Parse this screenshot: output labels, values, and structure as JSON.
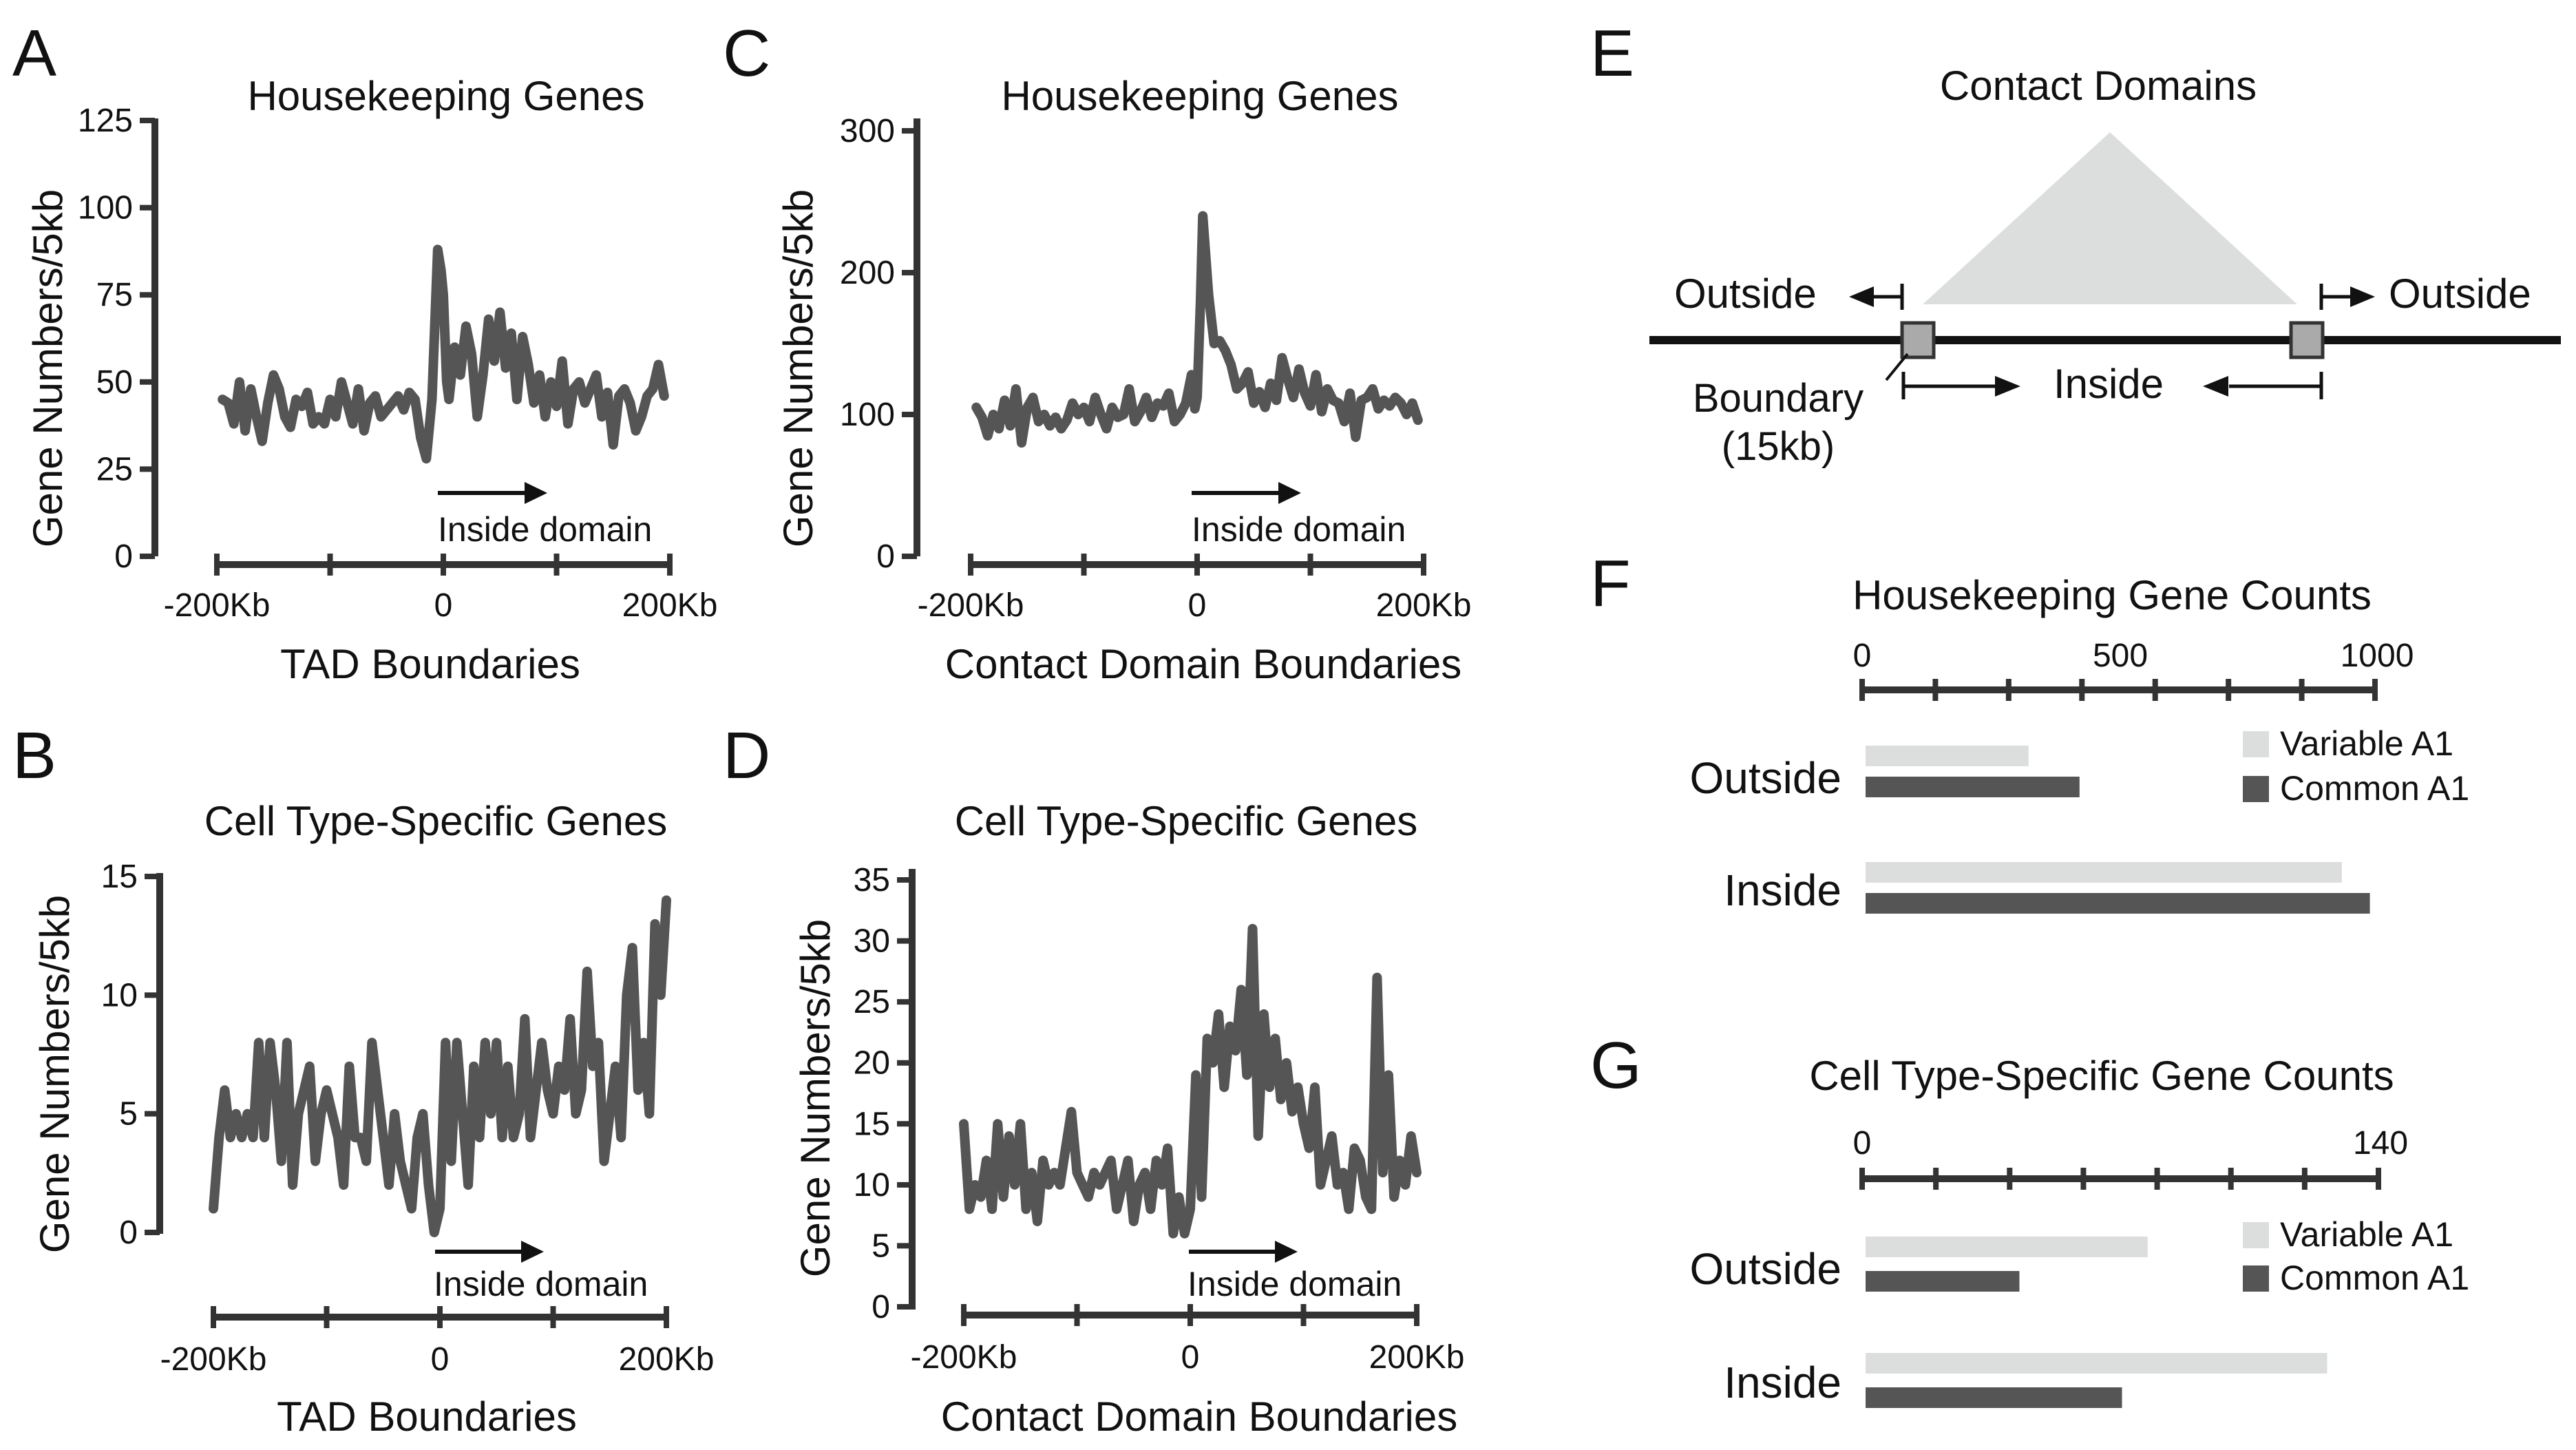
{
  "panel_letters": [
    "A",
    "B",
    "C",
    "D",
    "E",
    "F",
    "G"
  ],
  "chart_data": [
    {
      "id": "A",
      "type": "line",
      "title": "Housekeeping Genes",
      "xlabel": "TAD Boundaries",
      "ylabel": "Gene Numbers/5kb",
      "x_tick_labels": [
        "-200Kb",
        "0",
        "200Kb"
      ],
      "xlim": [
        -200,
        200
      ],
      "ylim": [
        0,
        125
      ],
      "y_ticks": [
        0,
        25,
        50,
        75,
        100,
        125
      ],
      "annotation": "Inside domain",
      "series": [
        {
          "name": "Housekeeping Genes",
          "color": "#555555",
          "x": [
            -195,
            -190,
            -185,
            -180,
            -175,
            -170,
            -165,
            -160,
            -155,
            -150,
            -145,
            -140,
            -135,
            -130,
            -125,
            -120,
            -115,
            -110,
            -105,
            -100,
            -95,
            -90,
            -85,
            -80,
            -75,
            -70,
            -65,
            -60,
            -55,
            -50,
            -45,
            -40,
            -35,
            -30,
            -25,
            -20,
            -15,
            -10,
            -5,
            -2,
            0,
            3,
            5,
            10,
            15,
            20,
            25,
            30,
            35,
            40,
            45,
            50,
            55,
            60,
            65,
            70,
            75,
            80,
            85,
            90,
            95,
            100,
            105,
            110,
            115,
            120,
            125,
            130,
            135,
            140,
            145,
            150,
            155,
            160,
            165,
            170,
            175,
            180,
            185,
            190,
            195
          ],
          "values": [
            45,
            44,
            38,
            50,
            36,
            48,
            40,
            33,
            44,
            52,
            48,
            40,
            37,
            45,
            43,
            47,
            38,
            40,
            38,
            45,
            40,
            50,
            44,
            38,
            48,
            36,
            44,
            46,
            40,
            42,
            44,
            46,
            42,
            47,
            45,
            34,
            28,
            45,
            88,
            82,
            75,
            50,
            45,
            60,
            52,
            66,
            58,
            40,
            52,
            68,
            56,
            70,
            54,
            64,
            45,
            63,
            55,
            44,
            52,
            40,
            50,
            43,
            56,
            38,
            48,
            50,
            44,
            48,
            52,
            40,
            47,
            32,
            46,
            48,
            44,
            36,
            40,
            46,
            48,
            55,
            46
          ]
        }
      ]
    },
    {
      "id": "B",
      "type": "line",
      "title": "Cell Type-Specific Genes",
      "xlabel": "TAD Boundaries",
      "ylabel": "Gene Numbers/5kb",
      "x_tick_labels": [
        "-200Kb",
        "0",
        "200Kb"
      ],
      "xlim": [
        -200,
        200
      ],
      "ylim": [
        0,
        15
      ],
      "y_ticks": [
        0,
        5,
        10,
        15
      ],
      "annotation": "Inside domain",
      "series": [
        {
          "name": "Cell Type-Specific Genes",
          "color": "#555555",
          "x": [
            -200,
            -195,
            -190,
            -185,
            -180,
            -175,
            -170,
            -165,
            -160,
            -155,
            -150,
            -145,
            -140,
            -135,
            -130,
            -125,
            -120,
            -115,
            -110,
            -105,
            -100,
            -95,
            -90,
            -85,
            -80,
            -75,
            -70,
            -65,
            -60,
            -55,
            -50,
            -45,
            -40,
            -35,
            -30,
            -25,
            -20,
            -15,
            -10,
            -5,
            0,
            5,
            10,
            15,
            20,
            25,
            30,
            35,
            40,
            45,
            50,
            55,
            60,
            65,
            70,
            75,
            80,
            85,
            90,
            95,
            100,
            105,
            110,
            115,
            120,
            125,
            130,
            135,
            140,
            145,
            150,
            155,
            160,
            165,
            170,
            175,
            180,
            185,
            190,
            195,
            200
          ],
          "values": [
            1,
            4,
            6,
            4,
            5,
            4,
            5,
            4,
            8,
            4,
            8,
            6,
            3,
            8,
            2,
            5,
            6,
            7,
            3,
            5,
            6,
            5,
            4,
            2,
            7,
            4,
            4,
            3,
            8,
            6,
            4,
            2,
            5,
            3,
            2,
            1,
            4,
            5,
            2,
            0,
            1,
            8,
            3,
            8,
            5,
            2,
            7,
            4,
            8,
            5,
            8,
            4,
            7,
            4,
            5,
            9,
            4,
            6,
            8,
            6,
            5,
            7,
            6,
            9,
            5,
            6,
            11,
            7,
            8,
            3,
            5,
            7,
            4,
            10,
            12,
            6,
            8,
            5,
            13,
            10,
            14
          ]
        }
      ]
    },
    {
      "id": "C",
      "type": "line",
      "title": "Housekeeping Genes",
      "xlabel": "Contact Domain Boundaries",
      "ylabel": "Gene Numbers/5kb",
      "x_tick_labels": [
        "-200Kb",
        "0",
        "200Kb"
      ],
      "xlim": [
        -200,
        200
      ],
      "ylim": [
        0,
        300
      ],
      "y_ticks": [
        0,
        100,
        200,
        300
      ],
      "annotation": "Inside domain",
      "series": [
        {
          "name": "Housekeeping Genes",
          "color": "#555555",
          "x": [
            -195,
            -190,
            -185,
            -180,
            -175,
            -170,
            -165,
            -160,
            -155,
            -150,
            -145,
            -140,
            -135,
            -130,
            -125,
            -120,
            -115,
            -110,
            -105,
            -100,
            -95,
            -90,
            -85,
            -80,
            -75,
            -70,
            -65,
            -60,
            -55,
            -50,
            -45,
            -40,
            -35,
            -30,
            -25,
            -20,
            -15,
            -10,
            -5,
            -2,
            0,
            3,
            5,
            10,
            15,
            20,
            25,
            30,
            35,
            40,
            45,
            50,
            55,
            60,
            65,
            70,
            75,
            80,
            85,
            90,
            95,
            100,
            105,
            110,
            115,
            120,
            125,
            130,
            135,
            140,
            145,
            150,
            155,
            160,
            165,
            170,
            175,
            180,
            185,
            190,
            195
          ],
          "values": [
            105,
            98,
            85,
            100,
            90,
            110,
            92,
            118,
            80,
            105,
            112,
            95,
            100,
            92,
            98,
            90,
            96,
            108,
            100,
            105,
            95,
            112,
            100,
            90,
            105,
            98,
            100,
            118,
            95,
            102,
            112,
            98,
            108,
            106,
            115,
            95,
            100,
            108,
            128,
            104,
            112,
            180,
            240,
            185,
            150,
            152,
            145,
            135,
            118,
            122,
            130,
            108,
            116,
            105,
            122,
            110,
            140,
            125,
            112,
            132,
            115,
            106,
            128,
            102,
            118,
            110,
            108,
            95,
            115,
            84,
            110,
            112,
            118,
            104,
            110,
            106,
            112,
            108,
            100,
            108,
            96
          ]
        }
      ]
    },
    {
      "id": "D",
      "type": "line",
      "title": "Cell Type-Specific Genes",
      "xlabel": "Contact Domain Boundaries",
      "ylabel": "Gene Numbers/5kb",
      "x_tick_labels": [
        "-200Kb",
        "0",
        "200Kb"
      ],
      "xlim": [
        -200,
        200
      ],
      "ylim": [
        0,
        35
      ],
      "y_ticks": [
        0,
        5,
        10,
        15,
        20,
        25,
        30,
        35
      ],
      "annotation": "Inside domain",
      "series": [
        {
          "name": "Cell Type-Specific Genes",
          "color": "#555555",
          "x": [
            -200,
            -195,
            -190,
            -185,
            -180,
            -175,
            -170,
            -165,
            -160,
            -155,
            -150,
            -145,
            -140,
            -135,
            -130,
            -125,
            -120,
            -115,
            -110,
            -105,
            -100,
            -95,
            -90,
            -85,
            -80,
            -75,
            -70,
            -65,
            -60,
            -55,
            -50,
            -45,
            -40,
            -35,
            -30,
            -25,
            -20,
            -15,
            -10,
            -5,
            0,
            5,
            10,
            15,
            20,
            25,
            30,
            35,
            40,
            45,
            50,
            55,
            60,
            65,
            70,
            75,
            80,
            85,
            90,
            95,
            100,
            105,
            110,
            115,
            120,
            125,
            130,
            135,
            140,
            145,
            150,
            155,
            160,
            165,
            170,
            175,
            180,
            185,
            190,
            195,
            200
          ],
          "values": [
            15,
            8,
            10,
            9,
            12,
            8,
            15,
            9,
            14,
            10,
            15,
            8,
            11,
            7,
            12,
            10,
            11,
            10,
            13,
            16,
            11,
            10,
            9,
            11,
            10,
            11,
            12,
            8,
            10,
            12,
            7,
            10,
            11,
            8,
            12,
            10,
            13,
            6,
            9,
            6,
            8,
            19,
            9,
            22,
            20,
            24,
            18,
            23,
            21,
            26,
            19,
            31,
            14,
            24,
            18,
            22,
            17,
            20,
            16,
            18,
            15,
            13,
            18,
            10,
            12,
            14,
            10,
            11,
            8,
            13,
            12,
            9,
            8,
            27,
            11,
            19,
            9,
            12,
            10,
            14,
            11
          ]
        }
      ]
    },
    {
      "id": "F",
      "type": "bar",
      "orientation": "horizontal",
      "title": "Housekeeping Gene Counts",
      "categories": [
        "Outside",
        "Inside"
      ],
      "xlim": [
        0,
        1000
      ],
      "x_tick_labels": [
        "0",
        "500",
        "1000"
      ],
      "series": [
        {
          "name": "Variable A1",
          "color": "#dcdedd",
          "values": [
            320,
            935
          ]
        },
        {
          "name": "Common A1",
          "color": "#555555",
          "values": [
            420,
            990
          ]
        }
      ]
    },
    {
      "id": "G",
      "type": "bar",
      "orientation": "horizontal",
      "title": "Cell Type-Specific Gene Counts",
      "categories": [
        "Outside",
        "Inside"
      ],
      "xlim": [
        0,
        140
      ],
      "x_tick_labels": [
        "0",
        "140"
      ],
      "series": [
        {
          "name": "Variable A1",
          "color": "#dcdedd",
          "values": [
            77,
            126
          ]
        },
        {
          "name": "Common A1",
          "color": "#555555",
          "values": [
            42,
            70
          ]
        }
      ]
    }
  ],
  "diagram_e": {
    "title": "Contact Domains",
    "outside_left": "Outside",
    "outside_right": "Outside",
    "inside": "Inside",
    "boundary_line1": "Boundary",
    "boundary_line2": "(15kb)"
  },
  "colors": {
    "line": "#555555",
    "axis": "#333333",
    "light_bar": "#dcdedd",
    "dark_bar": "#555555",
    "triangle": "#dcdedd",
    "boundary_box": "#aaaaaa"
  }
}
